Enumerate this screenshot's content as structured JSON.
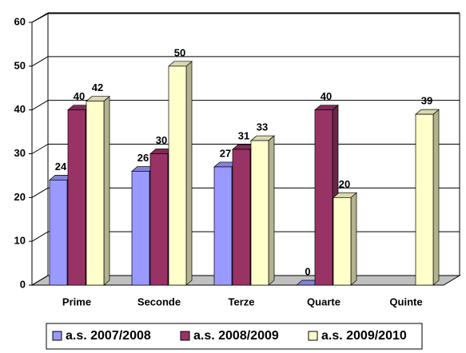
{
  "chart_data": {
    "type": "bar3d",
    "categories": [
      "Prime",
      "Seconde",
      "Terze",
      "Quarte",
      "Quinte"
    ],
    "series": [
      {
        "name": "a.s. 2007/2008",
        "color": "#9999ff",
        "values": [
          24,
          26,
          27,
          0,
          null
        ]
      },
      {
        "name": "a.s. 2008/2009",
        "color": "#993366",
        "values": [
          40,
          30,
          31,
          40,
          null
        ]
      },
      {
        "name": "a.s. 2009/2010",
        "color": "#ffffcc",
        "values": [
          42,
          50,
          33,
          20,
          39
        ]
      }
    ],
    "ylim": [
      0,
      60
    ],
    "yticks": [
      0,
      10,
      20,
      30,
      40,
      50,
      60
    ],
    "grid": true,
    "legend": "bottom"
  }
}
